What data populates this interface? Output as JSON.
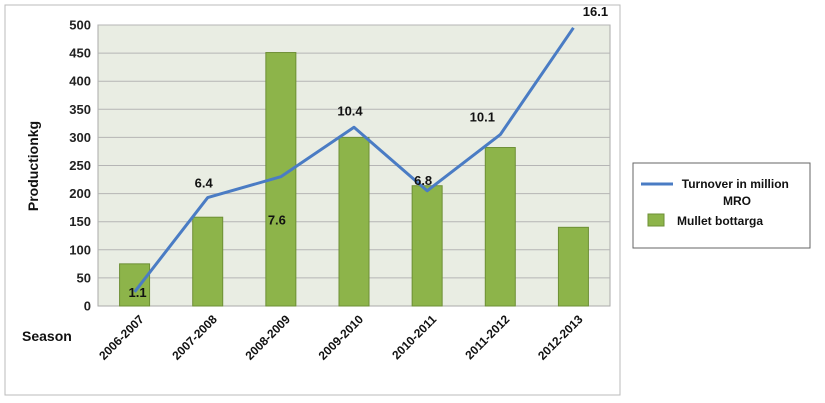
{
  "chart_data": {
    "type": "bar",
    "title": "",
    "xlabel": "Season",
    "ylabel": "Productionkg",
    "ylim": [
      0,
      500
    ],
    "yticks": [
      "0",
      "50",
      "100",
      "150",
      "200",
      "250",
      "300",
      "350",
      "400",
      "450",
      "500"
    ],
    "categories": [
      "2006-2007",
      "2007-2008",
      "2008-2009",
      "2009-2010",
      "2010-2011",
      "2011-2012",
      "2012-2013"
    ],
    "grid": true,
    "legend_position": "right",
    "series": [
      {
        "name": "Mullet bottarga",
        "type": "bar",
        "color": "#8db44a",
        "values": [
          75,
          158,
          451,
          300,
          214,
          282,
          140
        ]
      },
      {
        "name": "Turnover in million MRO",
        "type": "line",
        "color": "#4a7cc4",
        "axis_values": [
          25,
          193,
          230,
          318,
          205,
          305,
          495
        ],
        "labels": [
          "1.1",
          "6.4",
          "7.6",
          "10.4",
          "6.8",
          "10.1",
          "16.1"
        ]
      }
    ],
    "legend": {
      "line_entry": "Turnover in million MRO",
      "line_entry_lines": [
        "Turnover in million",
        "MRO"
      ],
      "bar_entry": "Mullet bottarga"
    }
  }
}
